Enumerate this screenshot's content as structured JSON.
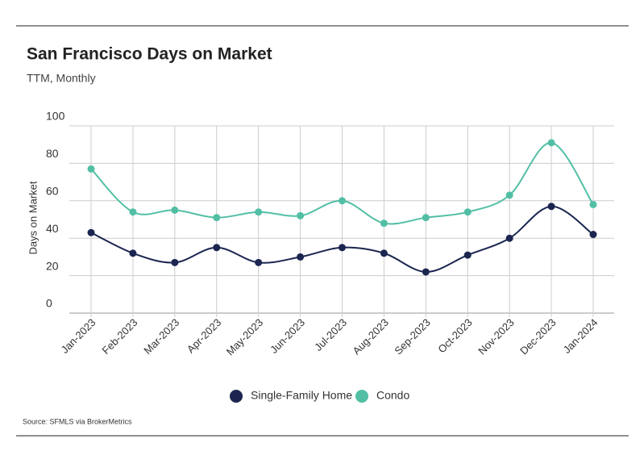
{
  "chart_data": {
    "type": "line",
    "title": "San Francisco Days on Market",
    "subtitle": "TTM, Monthly",
    "y_label": "Days on Market",
    "source": "Source:  SFMLS via BrokerMetrics",
    "categories": [
      "Jan-2023",
      "Feb-2023",
      "Mar-2023",
      "Apr-2023",
      "May-2023",
      "Jun-2023",
      "Jul-2023",
      "Aug-2023",
      "Sep-2023",
      "Oct-2023",
      "Nov-2023",
      "Dec-2023",
      "Jan-2024"
    ],
    "series": [
      {
        "name": "Single-Family Home",
        "color": "#1b2550",
        "values": [
          43,
          32,
          27,
          35,
          27,
          30,
          35,
          32,
          22,
          31,
          40,
          57,
          42
        ]
      },
      {
        "name": "Condo",
        "color": "#52bfa5",
        "values": [
          77,
          54,
          55,
          51,
          54,
          52,
          60,
          48,
          51,
          54,
          63,
          91,
          58
        ]
      }
    ],
    "ylim": [
      0,
      100
    ],
    "yticks": [
      0,
      20,
      40,
      60,
      80,
      100
    ],
    "grid": true,
    "smooth": true,
    "legend": "bottom"
  }
}
